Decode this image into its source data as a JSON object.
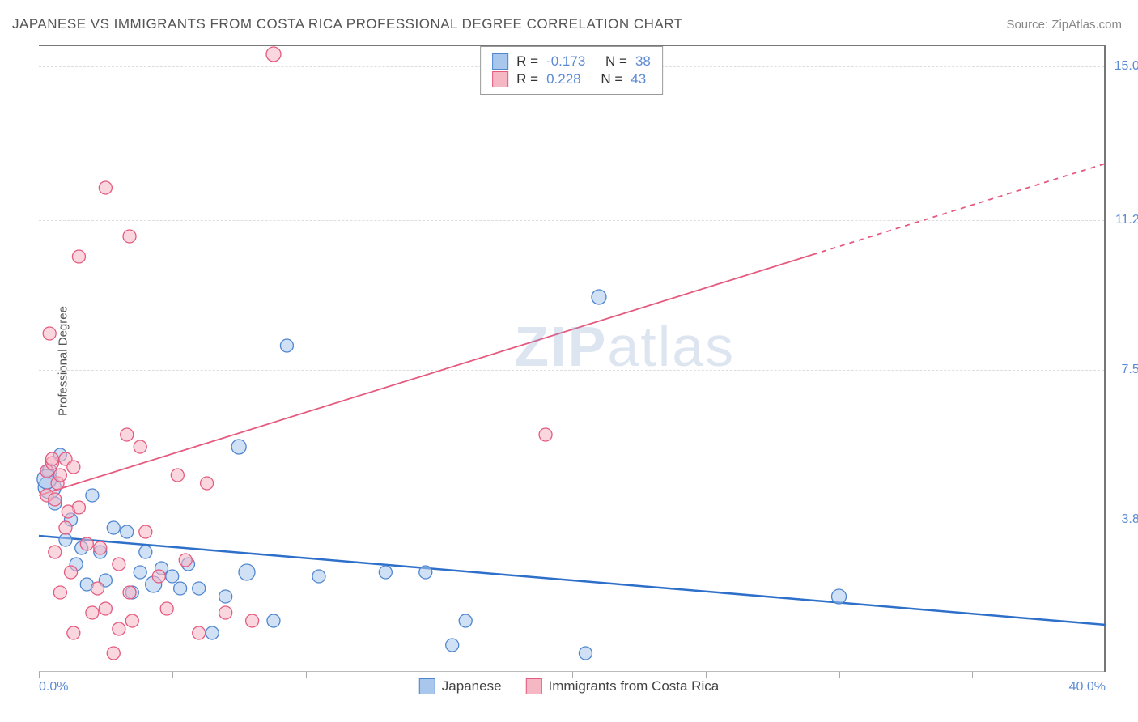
{
  "header": {
    "title": "JAPANESE VS IMMIGRANTS FROM COSTA RICA PROFESSIONAL DEGREE CORRELATION CHART",
    "source": "Source: ZipAtlas.com"
  },
  "axes": {
    "y_label": "Professional Degree",
    "x_min_label": "0.0%",
    "x_max_label": "40.0%",
    "xlim": [
      0,
      40
    ],
    "ylim": [
      0,
      15.5
    ],
    "y_ticks": [
      {
        "value": 3.8,
        "label": "3.8%"
      },
      {
        "value": 7.5,
        "label": "7.5%"
      },
      {
        "value": 11.2,
        "label": "11.2%"
      },
      {
        "value": 15.0,
        "label": "15.0%"
      }
    ],
    "x_tick_positions": [
      0,
      5,
      10,
      15,
      20,
      25,
      30,
      35,
      40
    ]
  },
  "series": [
    {
      "name": "Japanese",
      "fill": "#a9c6ec",
      "stroke": "#4f86cf",
      "fill_opacity": 0.55,
      "r_label": "R =",
      "r_value": "-0.173",
      "n_label": "N =",
      "n_value": "38",
      "regression": {
        "x1": 0,
        "y1": 3.4,
        "x2": 40,
        "y2": 1.2,
        "solid_until_x": 40,
        "color": "#2d6fc9",
        "width": 2.5
      },
      "points": [
        [
          0.4,
          5.0,
          9
        ],
        [
          0.4,
          4.6,
          14
        ],
        [
          0.6,
          4.2,
          8
        ],
        [
          0.8,
          5.4,
          8
        ],
        [
          1.0,
          3.3,
          8
        ],
        [
          1.2,
          3.8,
          8
        ],
        [
          1.4,
          2.7,
          8
        ],
        [
          1.6,
          3.1,
          8
        ],
        [
          1.8,
          2.2,
          8
        ],
        [
          2.0,
          4.4,
          8
        ],
        [
          2.3,
          3.0,
          8
        ],
        [
          2.5,
          2.3,
          8
        ],
        [
          2.8,
          3.6,
          8
        ],
        [
          3.3,
          3.5,
          8
        ],
        [
          3.5,
          2.0,
          8
        ],
        [
          3.8,
          2.5,
          8
        ],
        [
          4.0,
          3.0,
          8
        ],
        [
          4.3,
          2.2,
          10
        ],
        [
          4.6,
          2.6,
          8
        ],
        [
          5.0,
          2.4,
          8
        ],
        [
          5.3,
          2.1,
          8
        ],
        [
          5.6,
          2.7,
          8
        ],
        [
          6.0,
          2.1,
          8
        ],
        [
          6.5,
          1.0,
          8
        ],
        [
          7.0,
          1.9,
          8
        ],
        [
          7.5,
          5.6,
          9
        ],
        [
          7.8,
          2.5,
          10
        ],
        [
          8.8,
          1.3,
          8
        ],
        [
          9.3,
          8.1,
          8
        ],
        [
          10.5,
          2.4,
          8
        ],
        [
          13.0,
          2.5,
          8
        ],
        [
          14.5,
          2.5,
          8
        ],
        [
          15.5,
          0.7,
          8
        ],
        [
          16.0,
          1.3,
          8
        ],
        [
          20.5,
          0.5,
          8
        ],
        [
          21.0,
          9.3,
          9
        ],
        [
          30.0,
          1.9,
          9
        ],
        [
          0.3,
          4.8,
          12
        ]
      ]
    },
    {
      "name": "Immigrants from Costa Rica",
      "fill": "#f6b7c4",
      "stroke": "#e55a7f",
      "fill_opacity": 0.55,
      "r_label": "R =",
      "r_value": " 0.228",
      "n_label": "N =",
      "n_value": "43",
      "regression": {
        "x1": 0,
        "y1": 4.4,
        "x2": 40,
        "y2": 12.6,
        "solid_until_x": 29,
        "color": "#e55a7f",
        "width": 1.8
      },
      "points": [
        [
          0.3,
          5.0,
          8
        ],
        [
          0.3,
          4.4,
          8
        ],
        [
          0.4,
          8.4,
          8
        ],
        [
          0.5,
          5.2,
          8
        ],
        [
          0.6,
          3.0,
          8
        ],
        [
          0.7,
          4.7,
          8
        ],
        [
          0.8,
          2.0,
          8
        ],
        [
          1.0,
          3.6,
          8
        ],
        [
          1.2,
          2.5,
          8
        ],
        [
          1.3,
          1.0,
          8
        ],
        [
          1.5,
          4.1,
          8
        ],
        [
          1.5,
          10.3,
          8
        ],
        [
          1.8,
          3.2,
          8
        ],
        [
          2.0,
          1.5,
          8
        ],
        [
          2.2,
          2.1,
          8
        ],
        [
          2.3,
          3.1,
          8
        ],
        [
          2.5,
          1.6,
          8
        ],
        [
          2.8,
          0.5,
          8
        ],
        [
          2.5,
          12.0,
          8
        ],
        [
          3.0,
          2.7,
          8
        ],
        [
          3.3,
          5.9,
          8
        ],
        [
          3.4,
          2.0,
          8
        ],
        [
          3.4,
          10.8,
          8
        ],
        [
          3.5,
          1.3,
          8
        ],
        [
          3.8,
          5.6,
          8
        ],
        [
          4.0,
          3.5,
          8
        ],
        [
          4.5,
          2.4,
          8
        ],
        [
          4.8,
          1.6,
          8
        ],
        [
          5.2,
          4.9,
          8
        ],
        [
          5.5,
          2.8,
          8
        ],
        [
          6.0,
          1.0,
          8
        ],
        [
          6.3,
          4.7,
          8
        ],
        [
          7.0,
          1.5,
          8
        ],
        [
          8.0,
          1.3,
          8
        ],
        [
          8.8,
          15.3,
          9
        ],
        [
          0.5,
          5.3,
          8
        ],
        [
          0.6,
          4.3,
          8
        ],
        [
          0.8,
          4.9,
          8
        ],
        [
          1.0,
          5.3,
          8
        ],
        [
          1.1,
          4.0,
          8
        ],
        [
          1.3,
          5.1,
          8
        ],
        [
          3.0,
          1.1,
          8
        ],
        [
          19.0,
          5.9,
          8
        ]
      ]
    }
  ],
  "watermark": {
    "brand_bold": "ZIP",
    "brand_rest": "atlas"
  },
  "colors": {
    "grid": "#dddddd",
    "axis": "#777777",
    "tick_label": "#5b8bd4",
    "background": "#ffffff"
  }
}
